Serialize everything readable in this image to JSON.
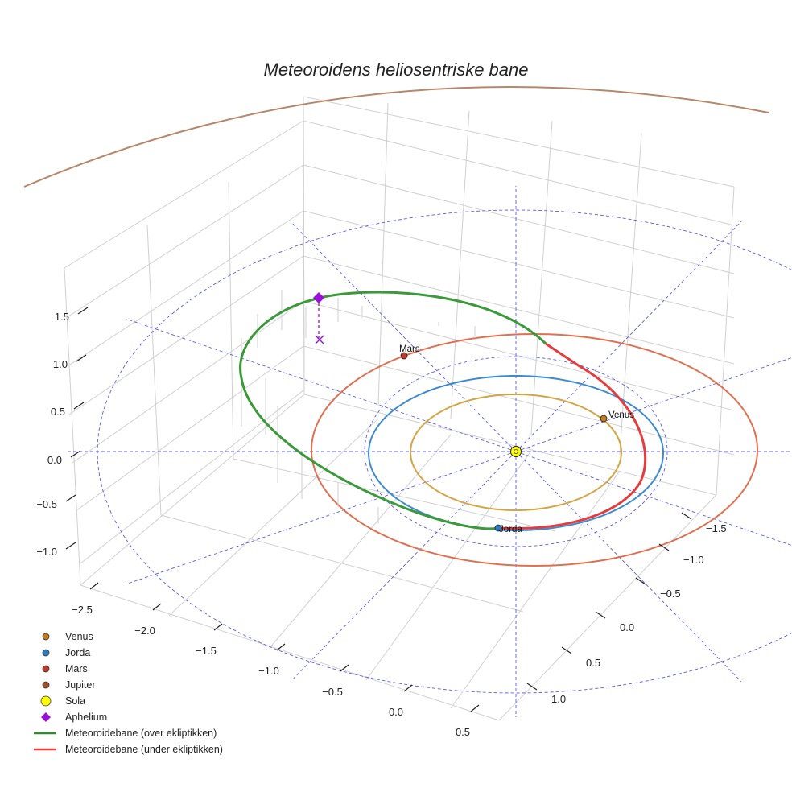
{
  "chart_data": {
    "type": "line3d",
    "title": "Meteoroidens heliosentriske bane",
    "axes": {
      "x_ticks": [
        "−2.5",
        "−2.0",
        "−1.5",
        "−1.0",
        "−0.5",
        "0.0",
        "0.5"
      ],
      "y_ticks": [
        "−1.5",
        "−1.0",
        "−0.5",
        "0.0",
        "0.5",
        "1.0"
      ],
      "z_ticks": [
        "−1.0",
        "−0.5",
        "0.0",
        "0.5",
        "1.0",
        "1.5"
      ]
    },
    "orbits": [
      {
        "name": "Venus",
        "a": 0.723,
        "color": "#d4a545"
      },
      {
        "name": "Jorda",
        "a": 1.0,
        "color": "#3c8ad0"
      },
      {
        "name": "Mars",
        "a": 1.524,
        "color": "#e07050"
      },
      {
        "name": "Jupiter",
        "a": 5.2,
        "color": "#b8876a"
      }
    ],
    "planets": [
      {
        "name": "Venus",
        "label": "Venus",
        "color": "#c87a18"
      },
      {
        "name": "Jorda",
        "label": "Jorda",
        "color": "#2a7bc0"
      },
      {
        "name": "Mars",
        "label": "Mars",
        "color": "#c0392b"
      },
      {
        "name": "Jupiter",
        "label": "",
        "color": "#a0522d"
      }
    ],
    "sun": {
      "name": "Sola",
      "color": "#ffff00"
    },
    "aphelium": {
      "name": "Aphelium",
      "color": "#9b10d8"
    },
    "meteoroid": {
      "above": {
        "name": "Meteoroidebane (over ekliptikken)",
        "color": "#3a9a3a"
      },
      "below": {
        "name": "Meteoroidebane (under ekliptikken)",
        "color": "#e8393b"
      }
    },
    "legend": [
      {
        "label": "Venus",
        "marker": "dot",
        "color": "#c87a18"
      },
      {
        "label": "Jorda",
        "marker": "dot",
        "color": "#2a7bc0"
      },
      {
        "label": "Mars",
        "marker": "dot",
        "color": "#c0392b"
      },
      {
        "label": "Jupiter",
        "marker": "dot",
        "color": "#a0522d"
      },
      {
        "label": "Sola",
        "marker": "sun",
        "color": "#ffff00"
      },
      {
        "label": "Aphelium",
        "marker": "diamond",
        "color": "#9b10d8"
      },
      {
        "label": "Meteoroidebane (over ekliptikken)",
        "marker": "line",
        "color": "#2e8b2e"
      },
      {
        "label": "Meteoroidebane (under ekliptikken)",
        "marker": "line",
        "color": "#e8393b"
      }
    ]
  }
}
